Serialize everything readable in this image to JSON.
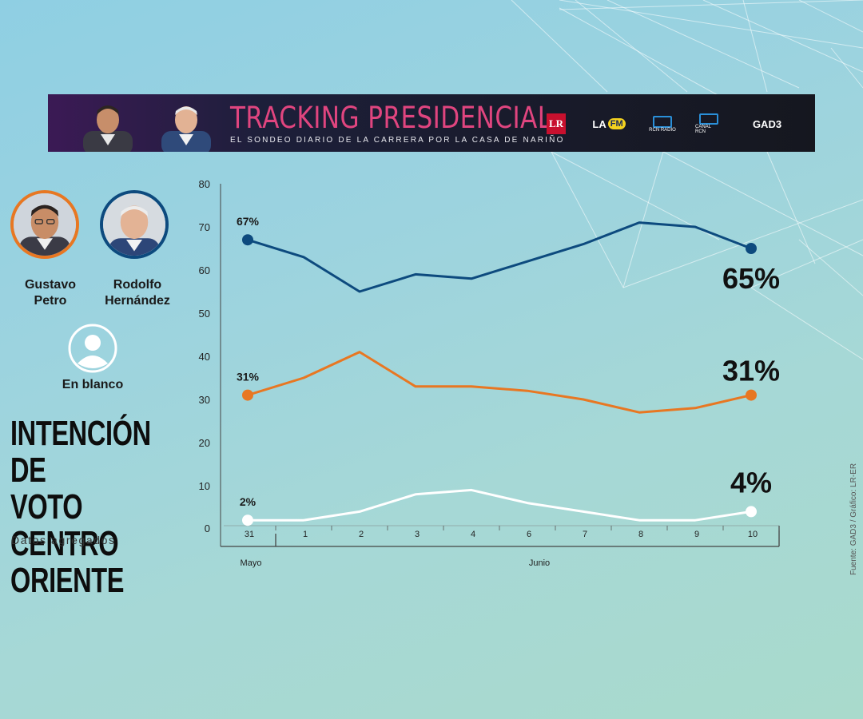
{
  "banner": {
    "title": "TRACKING PRESIDENCIAL",
    "subtitle": "EL SONDEO DIARIO DE LA CARRERA POR LA CASA DE NARIÑO",
    "logos": [
      "LR",
      "LA",
      "FM",
      "RCN RADIO",
      "CANAL RCN",
      "GAD3"
    ]
  },
  "candidates": [
    {
      "name_line1": "Gustavo",
      "name_line2": "Petro",
      "ring_color": "#e87722"
    },
    {
      "name_line1": "Rodolfo",
      "name_line2": "Hernández",
      "ring_color": "#0d4a7e"
    }
  ],
  "blank": {
    "label": "En blanco"
  },
  "title": {
    "line1": "INTENCIÓN DE",
    "line2": "VOTO CENTRO",
    "line3": "ORIENTE"
  },
  "subtitle": "Datos agregados",
  "source": "Fuente: GAD3 / Gráfico: LR-ER",
  "chart_data": {
    "type": "line",
    "categories": [
      "31",
      "1",
      "2",
      "3",
      "4",
      "6",
      "7",
      "8",
      "9",
      "10"
    ],
    "month_labels": [
      "Mayo",
      "Junio"
    ],
    "yticks": [
      "80",
      "70",
      "60",
      "50",
      "40",
      "30",
      "20",
      "10",
      "0"
    ],
    "ylim": [
      0,
      80
    ],
    "series": [
      {
        "name": "Rodolfo Hernández",
        "color": "#0d4a7e",
        "values": [
          67,
          63,
          55,
          59,
          58,
          62,
          66,
          71,
          70,
          65
        ],
        "start_label": "67%",
        "end_label": "65%"
      },
      {
        "name": "Gustavo Petro",
        "color": "#e87722",
        "values": [
          31,
          35,
          41,
          33,
          33,
          32,
          30,
          27,
          28,
          31
        ],
        "start_label": "31%",
        "end_label": "31%"
      },
      {
        "name": "En blanco",
        "color": "#ffffff",
        "values": [
          2,
          2,
          4,
          8,
          9,
          6,
          4,
          2,
          2,
          4
        ],
        "start_label": "2%",
        "end_label": "4%"
      }
    ]
  }
}
